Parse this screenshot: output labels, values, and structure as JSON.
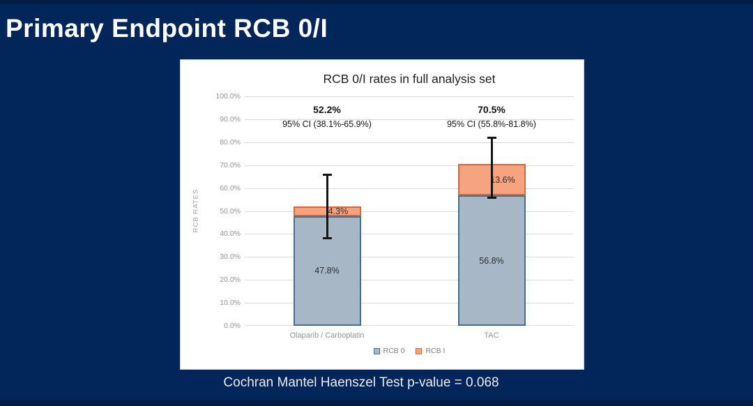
{
  "slide": {
    "title": "Primary Endpoint RCB 0/I",
    "footer_note": "Cochran Mantel Haenszel Test p-value = 0.068",
    "background_color": "#022659",
    "edge_strip_color": "#021c43",
    "panel_color": "#ffffff"
  },
  "chart_data": {
    "type": "bar",
    "stacked": true,
    "title": "RCB 0/I rates in full analysis set",
    "xlabel": "",
    "ylabel": "RCB RATES",
    "ylim": [
      0,
      100
    ],
    "grid": true,
    "legend_position": "bottom",
    "yaxis": {
      "min": 0,
      "max": 100,
      "step": 10
    },
    "ytick_labels": [
      "100.0%",
      "90.0%",
      "80.0%",
      "70.0%",
      "60.0%",
      "50.0%",
      "40.0%",
      "30.0%",
      "20.0%",
      "10.0%",
      "0.0%"
    ],
    "categories": [
      "Olaparib / Carboplatin",
      "TAC"
    ],
    "series": [
      {
        "name": "RCB 0",
        "values": [
          47.8,
          56.8
        ],
        "labels": [
          "47.8%",
          "56.8%"
        ],
        "fill": "#a7b7c5",
        "border": "#3e7195"
      },
      {
        "name": "RCB I",
        "values": [
          4.3,
          13.6
        ],
        "labels": [
          "4.3%",
          "13.6%"
        ],
        "fill": "#f5a47f",
        "border": "#e3632c"
      }
    ],
    "totals": [
      {
        "total": 52.2,
        "label": "52.2%",
        "ci_text": "95% CI (38.1%-65.9%)",
        "ci_low": 38.1,
        "ci_high": 65.9
      },
      {
        "total": 70.5,
        "label": "70.5%",
        "ci_text": "95% CI (55.8%-81.8%)",
        "ci_low": 55.8,
        "ci_high": 81.8
      }
    ]
  }
}
